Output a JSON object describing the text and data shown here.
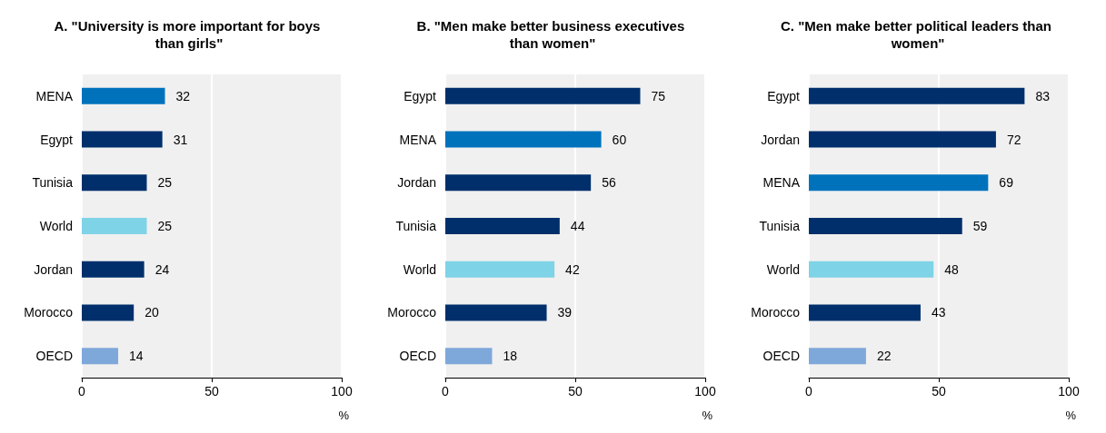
{
  "chart_data": [
    {
      "type": "bar",
      "orientation": "horizontal",
      "title": "A. \"University is more important for boys than girls\"",
      "xlabel": "%",
      "categories": [
        "MENA",
        "Egypt",
        "Tunisia",
        "World",
        "Jordan",
        "Morocco",
        "OECD"
      ],
      "values": [
        32,
        31,
        25,
        25,
        24,
        20,
        14
      ],
      "colors": [
        "#0072bc",
        "#002f6c",
        "#002f6c",
        "#7fd3e6",
        "#002f6c",
        "#002f6c",
        "#7fa8da"
      ],
      "xlim": [
        0,
        100
      ],
      "xticks": [
        0,
        50,
        100
      ],
      "grid": "x",
      "data_labels": true
    },
    {
      "type": "bar",
      "orientation": "horizontal",
      "title": "B. \"Men make better business executives than women\"",
      "xlabel": "%",
      "categories": [
        "Egypt",
        "MENA",
        "Jordan",
        "Tunisia",
        "World",
        "Morocco",
        "OECD"
      ],
      "values": [
        75,
        60,
        56,
        44,
        42,
        39,
        18
      ],
      "colors": [
        "#002f6c",
        "#0072bc",
        "#002f6c",
        "#002f6c",
        "#7fd3e6",
        "#002f6c",
        "#7fa8da"
      ],
      "xlim": [
        0,
        100
      ],
      "xticks": [
        0,
        50,
        100
      ],
      "grid": "x",
      "data_labels": true
    },
    {
      "type": "bar",
      "orientation": "horizontal",
      "title": "C. \"Men make better political leaders than women\"",
      "xlabel": "%",
      "categories": [
        "Egypt",
        "Jordan",
        "MENA",
        "Tunisia",
        "World",
        "Morocco",
        "OECD"
      ],
      "values": [
        83,
        72,
        69,
        59,
        48,
        43,
        22
      ],
      "colors": [
        "#002f6c",
        "#002f6c",
        "#0072bc",
        "#002f6c",
        "#7fd3e6",
        "#002f6c",
        "#7fa8da"
      ],
      "xlim": [
        0,
        100
      ],
      "xticks": [
        0,
        50,
        100
      ],
      "grid": "x",
      "data_labels": true
    }
  ]
}
